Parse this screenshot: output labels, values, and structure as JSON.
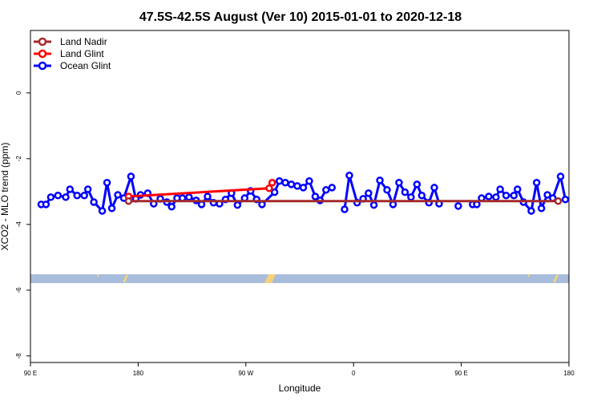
{
  "chart_data": {
    "type": "line",
    "title": "47.5S-42.5S August (Ver 10)   2015-01-01 to 2020-12-18",
    "x_label": "Longitude",
    "y_label": "XCO2 - MLO trend (ppm)",
    "xlim": [
      90,
      540
    ],
    "ylim": [
      -8.2,
      1.9
    ],
    "xticks": [
      {
        "value": 90,
        "label": "90 E"
      },
      180,
      {
        "value": 270,
        "label": "90 W"
      },
      {
        "value": 360,
        "label": "0"
      },
      {
        "value": 450,
        "label": "90 E"
      },
      {
        "value": 540,
        "label": "180"
      }
    ],
    "yticks": [
      -8,
      -6,
      -4,
      -2,
      0
    ],
    "legend": "top-left",
    "series": [
      {
        "name": "Land Nadir",
        "color": "#a52a2a",
        "x": [
          172,
          531
        ],
        "values": [
          -3.29,
          -3.29
        ]
      },
      {
        "name": "Land Glint",
        "color": "#ff0000",
        "x": [
          172,
          289.5,
          292
        ],
        "values": [
          -3.15,
          -2.9,
          -2.73
        ]
      },
      {
        "name": "Ocean Glint",
        "color": "#0000ff",
        "x": [
          99,
          103,
          107,
          113,
          119.5,
          123,
          129,
          135,
          138,
          143,
          150,
          154,
          158,
          163,
          168,
          174,
          178,
          182,
          188,
          193,
          198.5,
          204,
          208,
          212.5,
          217,
          222.5,
          228.5,
          233,
          238,
          243,
          248,
          253,
          258,
          263,
          269,
          274,
          279,
          283.5,
          294,
          298,
          303,
          308,
          313,
          318,
          323,
          328,
          332,
          337,
          342,
          null,
          352.5,
          356.5,
          363,
          368,
          372.5,
          377,
          382,
          388,
          393,
          398,
          403,
          408,
          413,
          417,
          423,
          427.5,
          431.5,
          null,
          447.5,
          null,
          459.5,
          463,
          467,
          473,
          479,
          482.5,
          487.5,
          494,
          497,
          502,
          508.5,
          513,
          517,
          522,
          526.5,
          533,
          537
        ],
        "values": [
          -3.39,
          -3.39,
          -3.17,
          -3.12,
          -3.17,
          -2.93,
          -3.12,
          -3.12,
          -2.93,
          -3.32,
          -3.59,
          -2.73,
          -3.51,
          -3.1,
          -3.2,
          -2.54,
          -3.22,
          -3.1,
          -3.05,
          -3.37,
          -3.22,
          -3.32,
          -3.46,
          -3.2,
          -3.2,
          -3.17,
          -3.27,
          -3.39,
          -3.15,
          -3.34,
          -3.37,
          -3.24,
          -3.05,
          -3.41,
          -3.2,
          -2.98,
          -3.24,
          -3.39,
          -3.02,
          -2.68,
          -2.73,
          -2.78,
          -2.83,
          -2.88,
          -2.68,
          -3.15,
          -3.27,
          -2.95,
          -2.88,
          null,
          -3.54,
          -2.51,
          -3.34,
          -3.22,
          -3.05,
          -3.41,
          -2.66,
          -2.95,
          -3.39,
          -2.73,
          -3.02,
          -3.17,
          -2.78,
          -3.12,
          -3.34,
          -2.88,
          -3.37,
          null,
          -3.44,
          null,
          -3.39,
          -3.39,
          -3.2,
          -3.15,
          -3.17,
          -2.93,
          -3.12,
          -3.12,
          -2.93,
          -3.32,
          -3.59,
          -2.73,
          -3.51,
          -3.1,
          -3.2,
          -2.54,
          -3.24
        ]
      }
    ]
  }
}
